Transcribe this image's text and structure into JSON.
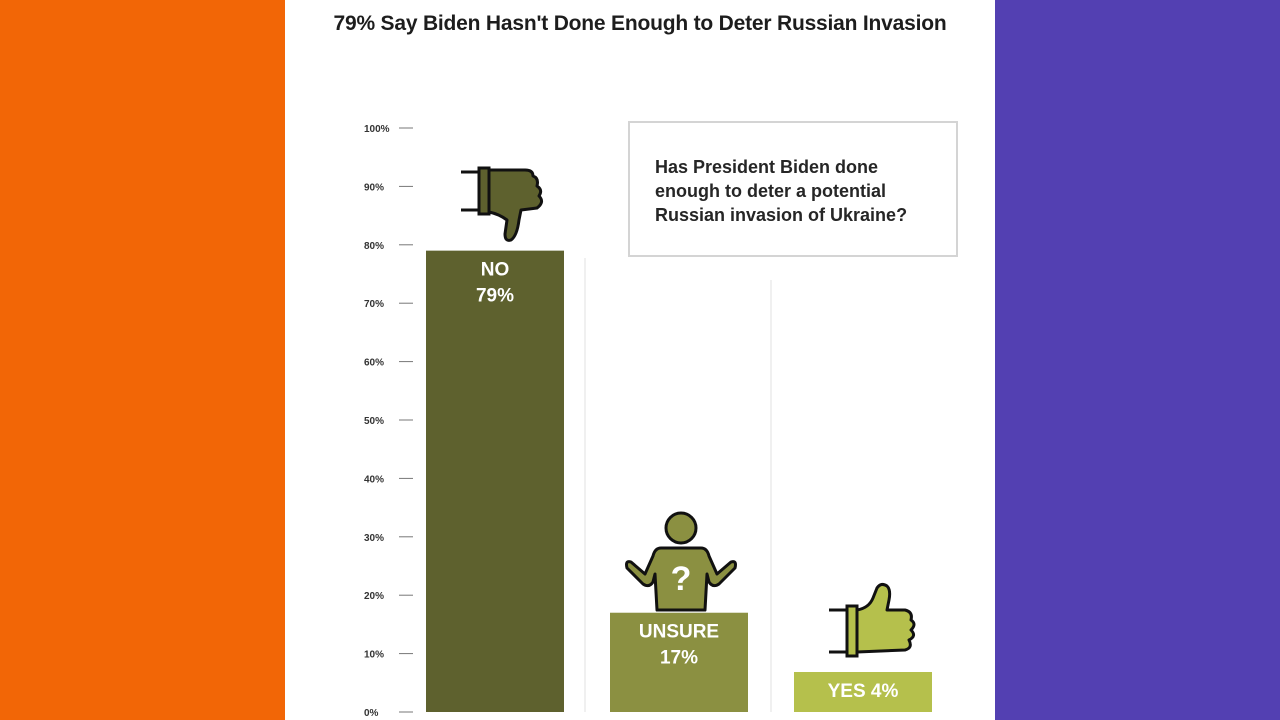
{
  "colors": {
    "left_panel": "#f26606",
    "right_panel": "#5340b2",
    "no_bar": "#5e612e",
    "unsure_bar": "#8b9041",
    "yes_bar": "#b5c04c"
  },
  "question": "Has President Biden done enough to deter a potential Russian invasion of Ukraine?",
  "icons": {
    "no": "thumbs-down-icon",
    "unsure": "shrugging-person-question-icon",
    "yes": "thumbs-up-icon"
  },
  "chart_data": {
    "type": "bar",
    "title": "79% Say Biden Hasn't Done Enough to Deter Russian Invasion",
    "xlabel": "",
    "ylabel": "",
    "ylim": [
      0,
      100
    ],
    "yticks": [
      "0%",
      "10%",
      "20%",
      "30%",
      "40%",
      "50%",
      "60%",
      "70%",
      "80%",
      "90%",
      "100%"
    ],
    "categories": [
      "NO",
      "UNSURE",
      "YES"
    ],
    "values": [
      79,
      17,
      4
    ],
    "data_labels": [
      [
        "NO",
        "79%"
      ],
      [
        "UNSURE",
        "17%"
      ],
      [
        "YES 4%"
      ]
    ],
    "grid": false,
    "legend": "none"
  }
}
